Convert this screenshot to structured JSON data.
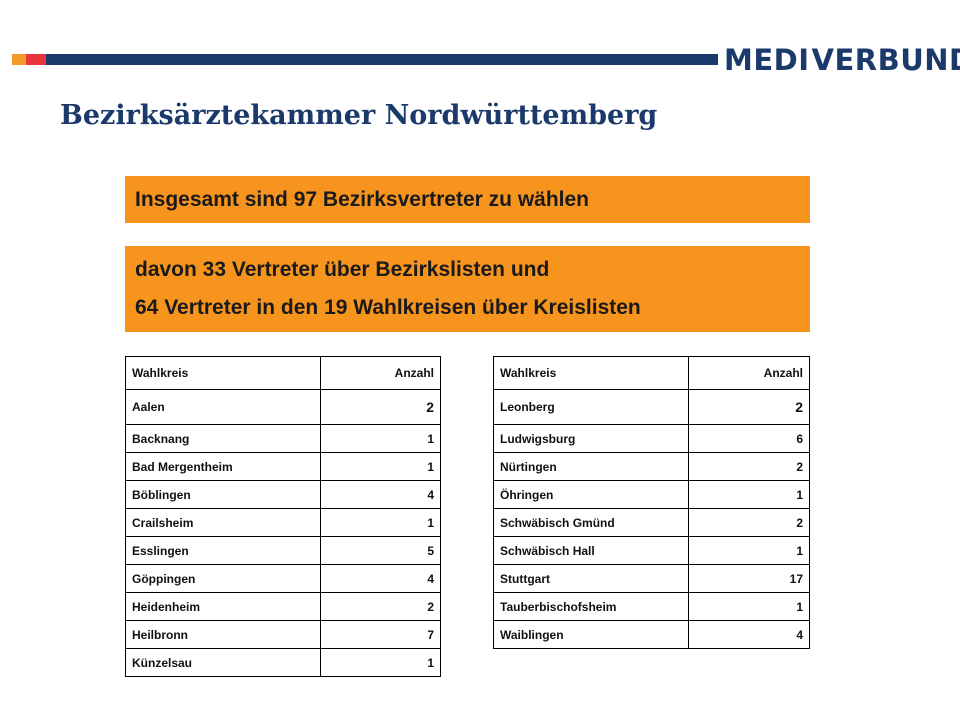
{
  "header": {
    "brand_colors": {
      "orange": "#f39a2b",
      "red": "#e8343b",
      "blue": "#1b3a6b"
    },
    "logo_text_left": "MEDI",
    "logo_text_right": "VERBUND",
    "logo_icon": "flame-icon"
  },
  "title": "Bezirksärztekammer Nordwürttemberg",
  "banner1": "Insgesamt sind 97 Bezirksvertreter zu wählen",
  "banner2": {
    "line1": "davon 33 Vertreter über Bezirkslisten und",
    "line2": "64 Vertreter in den 19 Wahlkreisen über Kreislisten"
  },
  "table_left": {
    "header": {
      "col1": "Wahlkreis",
      "col2": "Anzahl"
    },
    "rows": [
      {
        "name": "Aalen",
        "count": "2"
      },
      {
        "name": "Backnang",
        "count": "1"
      },
      {
        "name": "Bad Mergentheim",
        "count": "1"
      },
      {
        "name": "Böblingen",
        "count": "4"
      },
      {
        "name": "Crailsheim",
        "count": "1"
      },
      {
        "name": "Esslingen",
        "count": "5"
      },
      {
        "name": "Göppingen",
        "count": "4"
      },
      {
        "name": "Heidenheim",
        "count": "2"
      },
      {
        "name": "Heilbronn",
        "count": "7"
      },
      {
        "name": "Künzelsau",
        "count": "1"
      }
    ]
  },
  "table_right": {
    "header": {
      "col1": "Wahlkreis",
      "col2": "Anzahl"
    },
    "rows": [
      {
        "name": "Leonberg",
        "count": "2"
      },
      {
        "name": "Ludwigsburg",
        "count": "6"
      },
      {
        "name": "Nürtingen",
        "count": "2"
      },
      {
        "name": "Öhringen",
        "count": "1"
      },
      {
        "name": "Schwäbisch Gmünd",
        "count": "2"
      },
      {
        "name": "Schwäbisch Hall",
        "count": "1"
      },
      {
        "name": "Stuttgart",
        "count": "17"
      },
      {
        "name": "Tauberbischofsheim",
        "count": "1"
      },
      {
        "name": "Waiblingen",
        "count": "4"
      }
    ]
  }
}
